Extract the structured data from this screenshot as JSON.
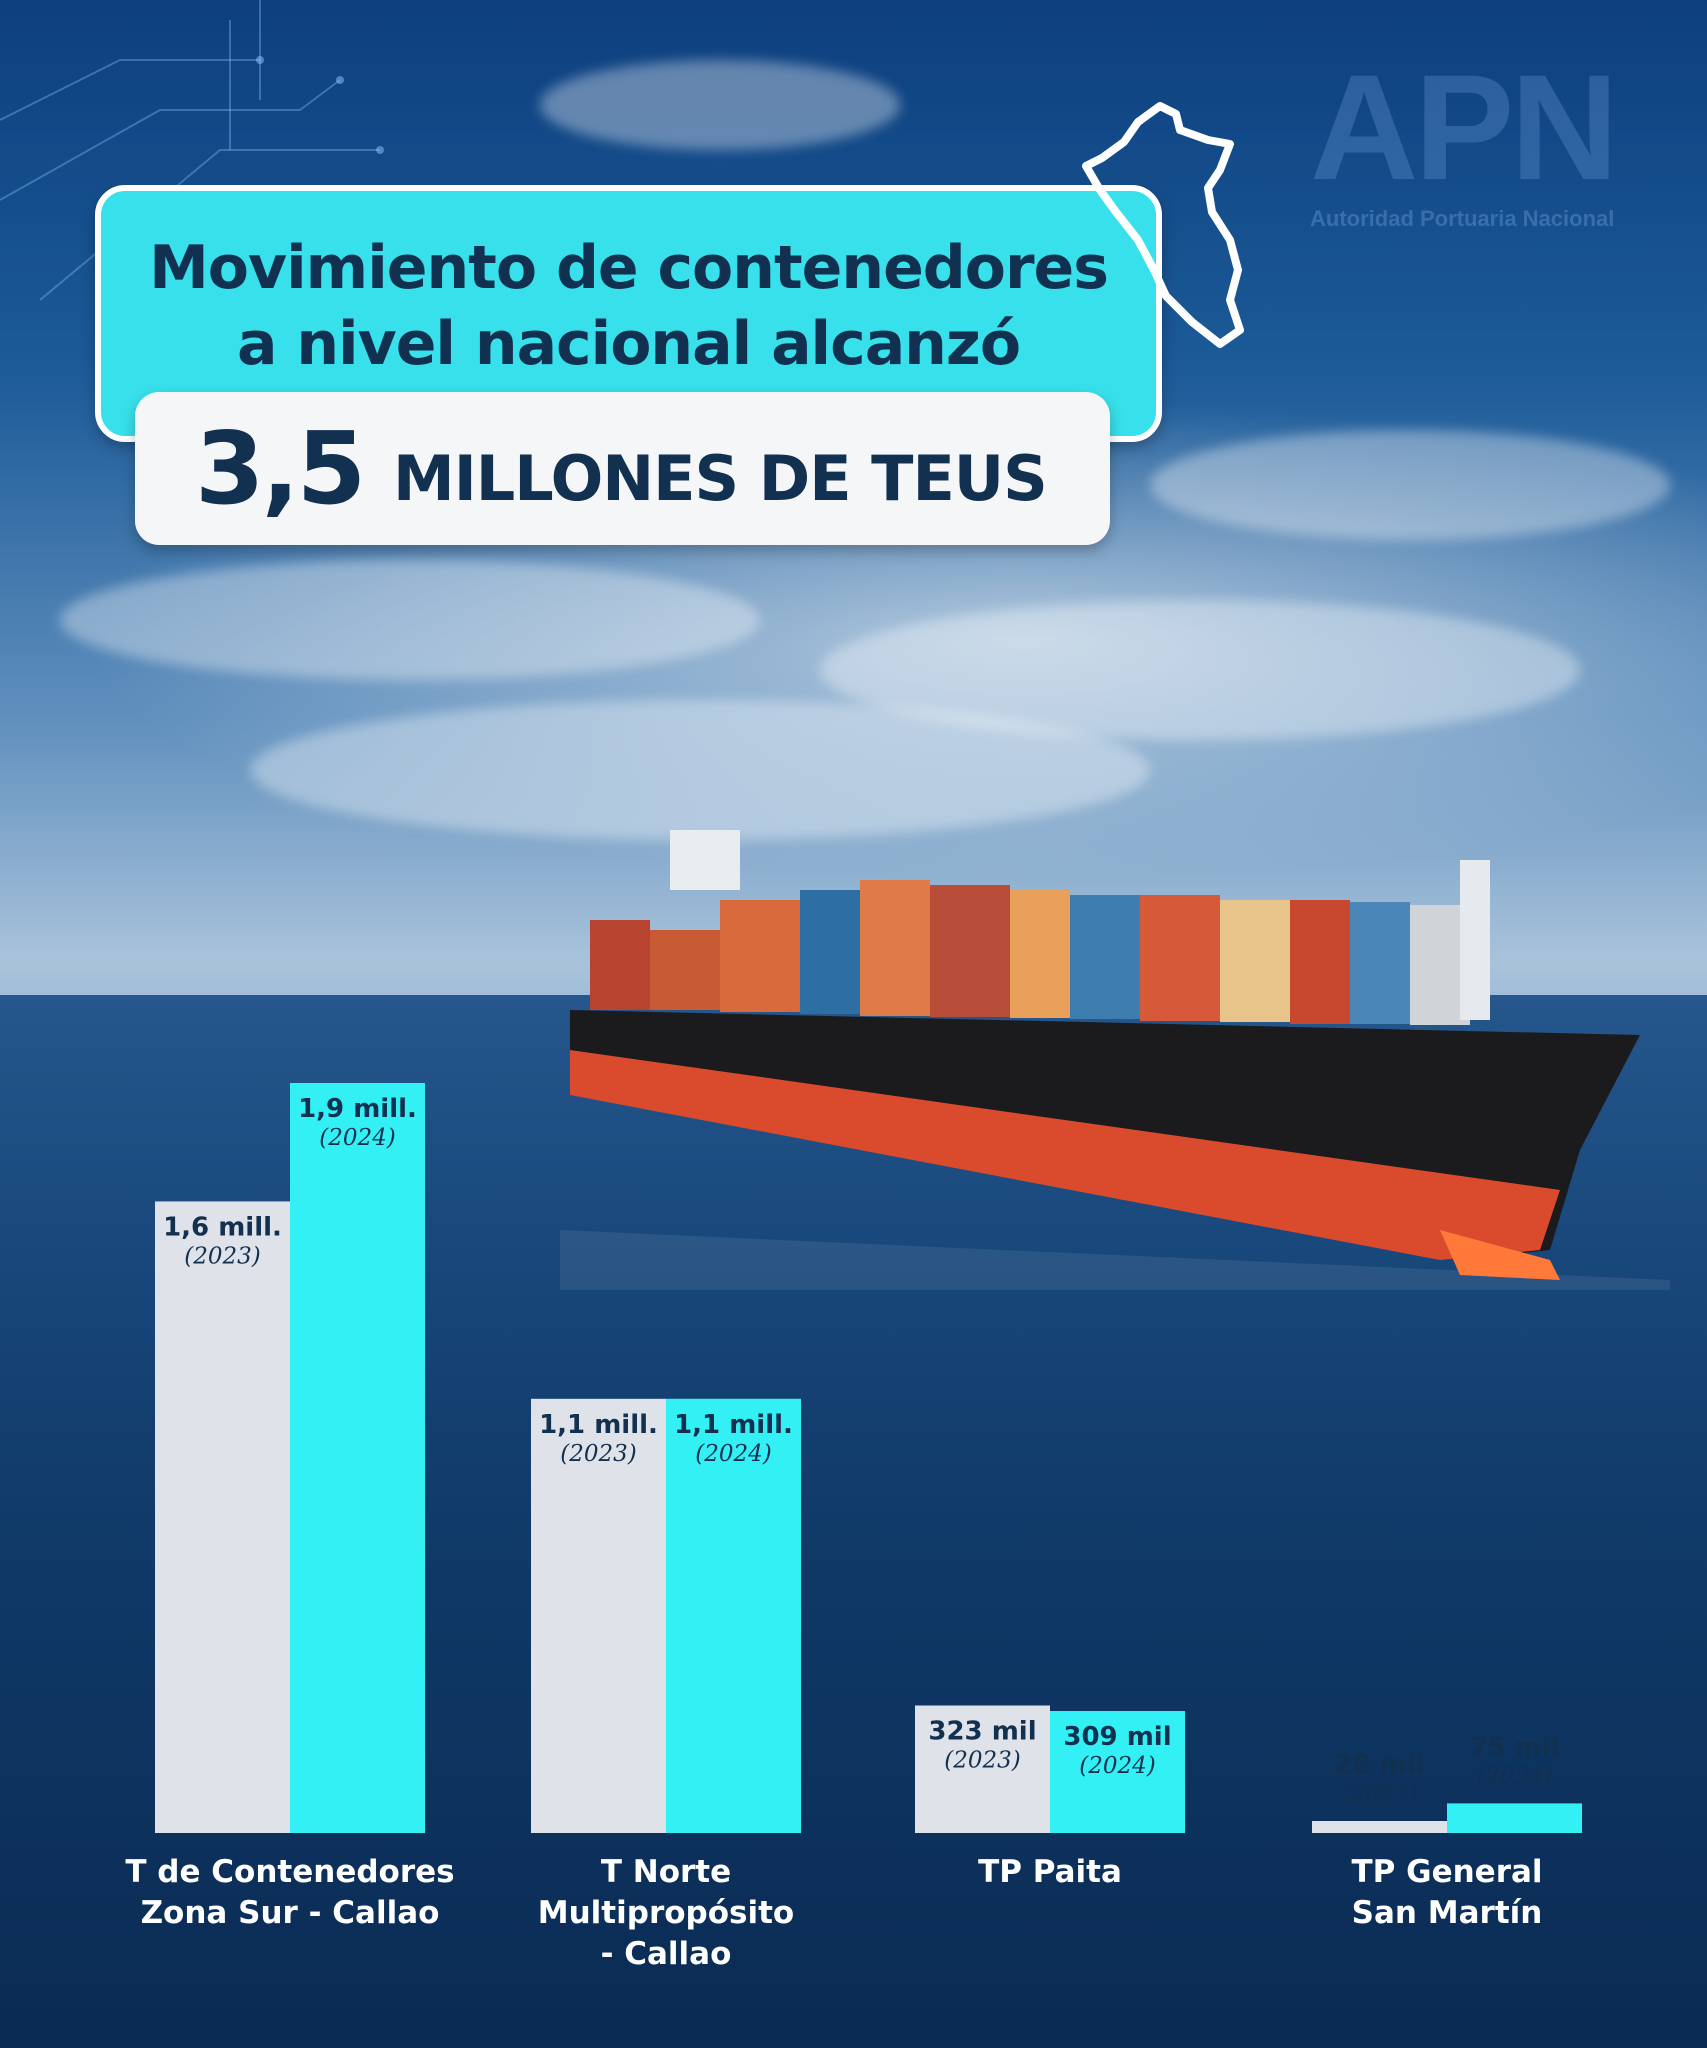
{
  "header": {
    "title_line1": "Movimiento de contenedores",
    "title_line2": "a nivel nacional alcanzó",
    "highlight_number": "3,5",
    "highlight_unit": "MILLONES DE TEUS"
  },
  "logo": {
    "text": "APN",
    "subtitle": "Autoridad Portuaria Nacional"
  },
  "icons": {
    "map": "peru-map-outline-icon",
    "ship": "container-ship-image"
  },
  "colors": {
    "bar_2023": "#dfe3e9",
    "bar_2024": "#33f0f5",
    "title_bg": "#37e0ea",
    "text_dark": "#12304f"
  },
  "chart_data": {
    "type": "bar",
    "categories": [
      [
        "T de Contenedores",
        "Zona Sur - Callao"
      ],
      [
        "T Norte",
        "Multipropósito",
        "- Callao"
      ],
      [
        "TP Paita"
      ],
      [
        "TP General",
        "San Martín"
      ]
    ],
    "series": [
      {
        "name": "(2023)",
        "values": [
          1600000,
          1100000,
          323000,
          28000
        ],
        "labels": [
          "1,6 mill.",
          "1,1 mill.",
          "323 mil",
          "28 mil"
        ]
      },
      {
        "name": "(2024)",
        "values": [
          1900000,
          1100000,
          309000,
          75000
        ],
        "labels": [
          "1,9 mill.",
          "1,1 mill.",
          "309 mil",
          "75 mil"
        ]
      }
    ]
  }
}
